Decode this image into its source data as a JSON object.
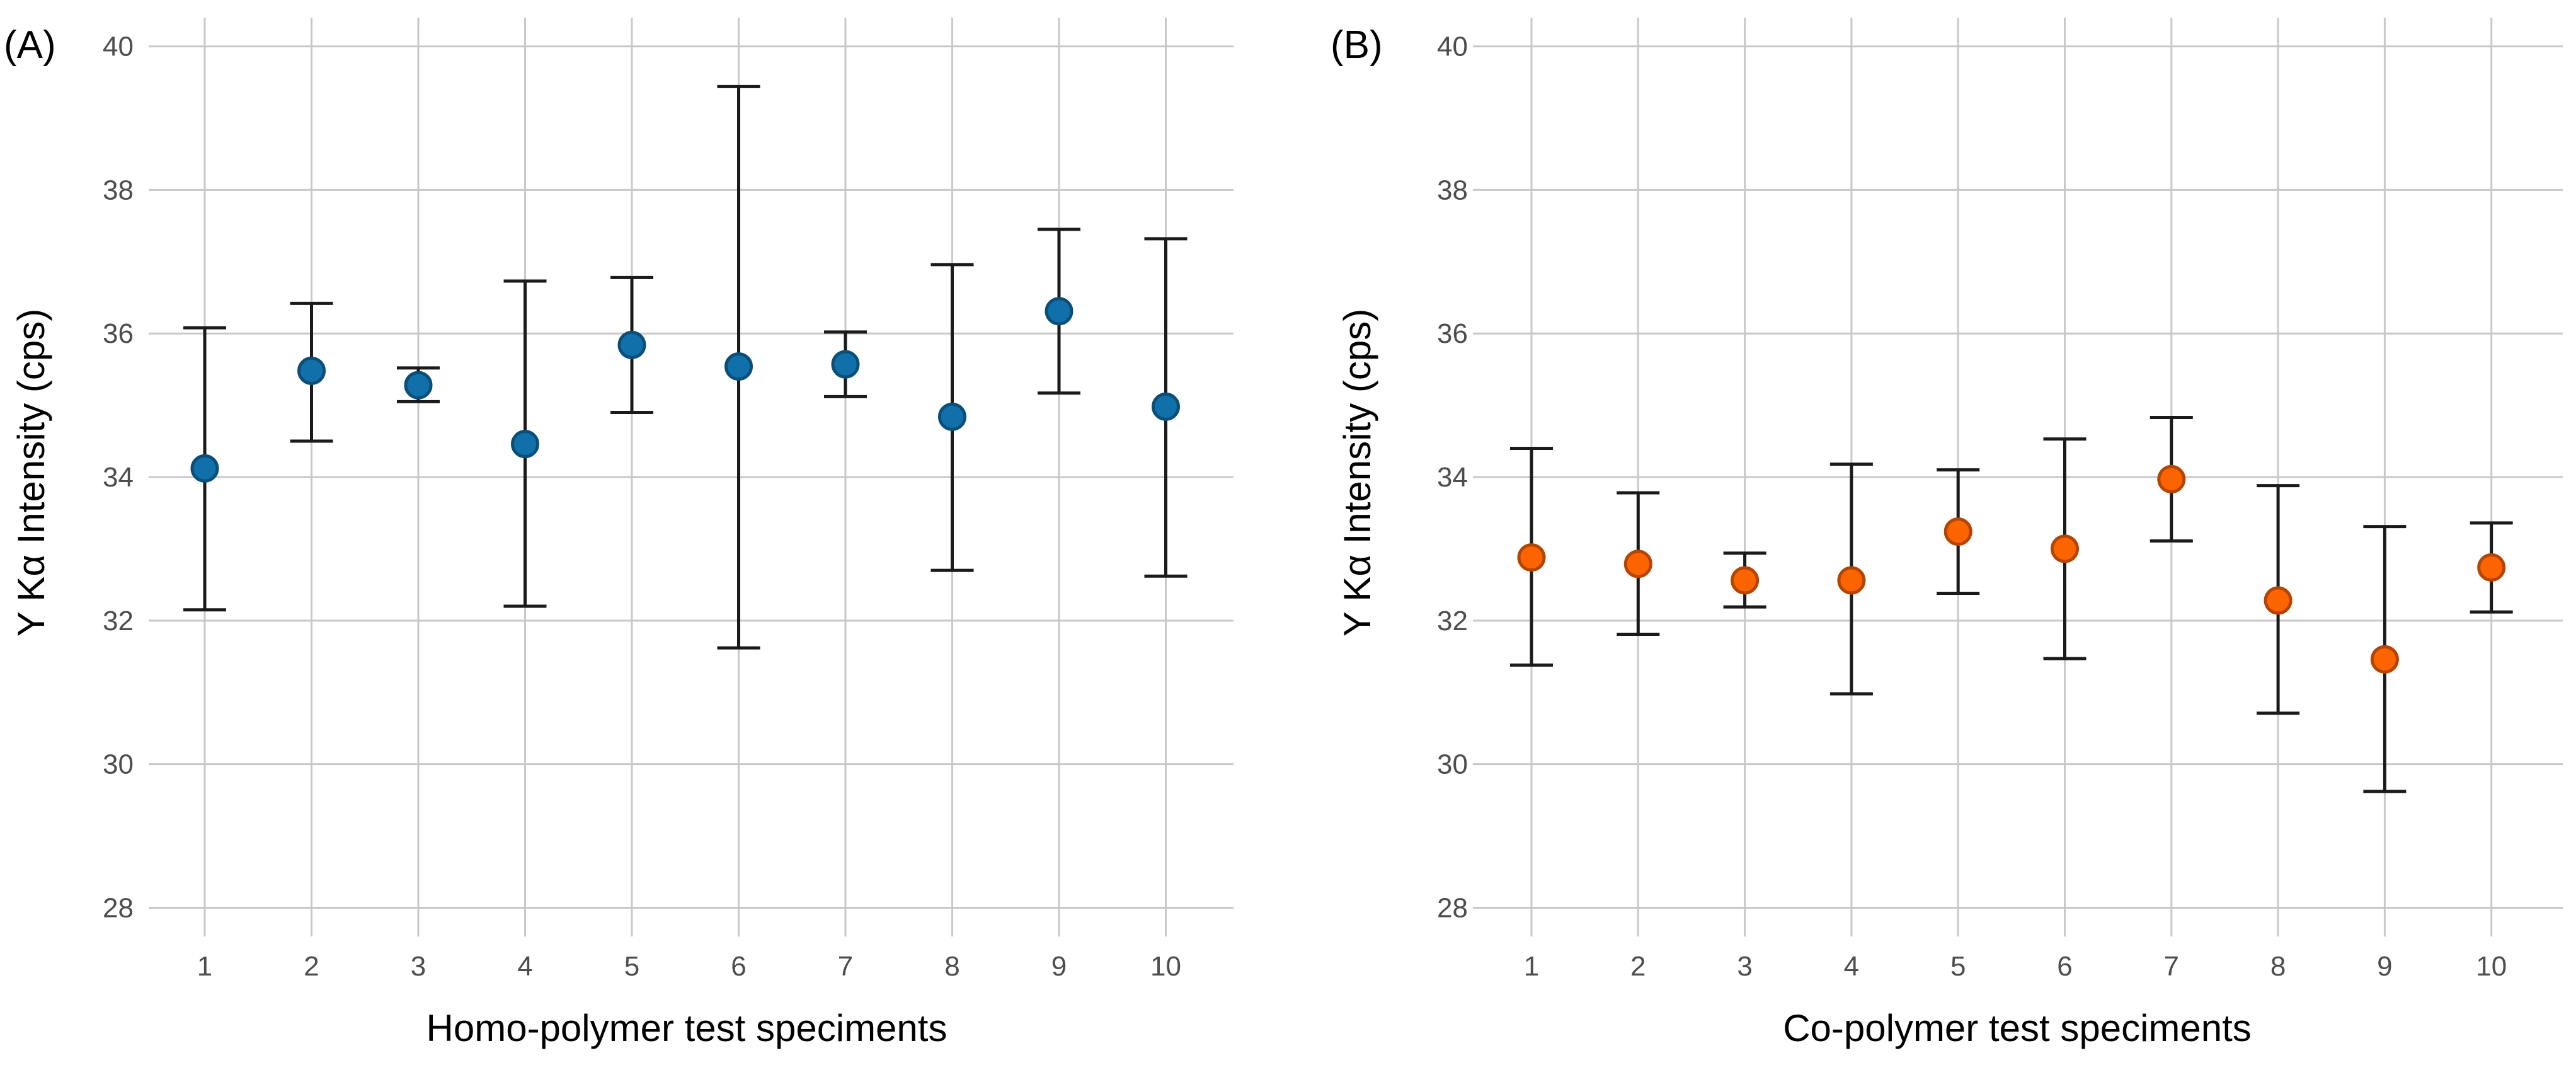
{
  "chart_data": [
    {
      "type": "scatter",
      "panel_label": "(A)",
      "title": "",
      "xlabel": "Homo-polymer test speciments",
      "ylabel": "Y Kα Intensity (cps)",
      "categories": [
        "1",
        "2",
        "3",
        "4",
        "5",
        "6",
        "7",
        "8",
        "9",
        "10"
      ],
      "yticks": [
        "28",
        "30",
        "32",
        "34",
        "36",
        "38",
        "40"
      ],
      "ylim": [
        27.6,
        40.4
      ],
      "grid": true,
      "point_color": "#1170aa",
      "point_edge": "#0b4f79",
      "series": [
        {
          "name": "Homo-polymer",
          "values": [
            34.12,
            35.48,
            35.28,
            34.46,
            35.84,
            35.54,
            35.57,
            34.84,
            36.31,
            34.98
          ],
          "err_low": [
            32.15,
            34.5,
            35.05,
            32.2,
            34.9,
            31.62,
            35.12,
            32.7,
            35.17,
            32.62
          ],
          "err_high": [
            36.08,
            36.42,
            35.52,
            36.73,
            36.78,
            39.44,
            36.02,
            36.96,
            37.45,
            37.32
          ]
        }
      ]
    },
    {
      "type": "scatter",
      "panel_label": "(B)",
      "title": "",
      "xlabel": "Co-polymer test speciments",
      "ylabel": "Y Kα Intensity (cps)",
      "categories": [
        "1",
        "2",
        "3",
        "4",
        "5",
        "6",
        "7",
        "8",
        "9",
        "10"
      ],
      "yticks": [
        "28",
        "30",
        "32",
        "34",
        "36",
        "38",
        "40"
      ],
      "ylim": [
        27.6,
        40.4
      ],
      "grid": true,
      "point_color": "#fc6400",
      "point_edge": "#b54400",
      "series": [
        {
          "name": "Co-polymer",
          "values": [
            32.88,
            32.79,
            32.56,
            32.56,
            33.24,
            33.0,
            33.97,
            32.28,
            31.46,
            32.74
          ],
          "err_low": [
            31.38,
            31.81,
            32.19,
            30.98,
            32.38,
            31.47,
            33.11,
            30.71,
            29.62,
            32.12
          ],
          "err_high": [
            34.4,
            33.78,
            32.94,
            34.18,
            34.1,
            34.53,
            34.83,
            33.88,
            33.31,
            33.36
          ]
        }
      ]
    }
  ]
}
